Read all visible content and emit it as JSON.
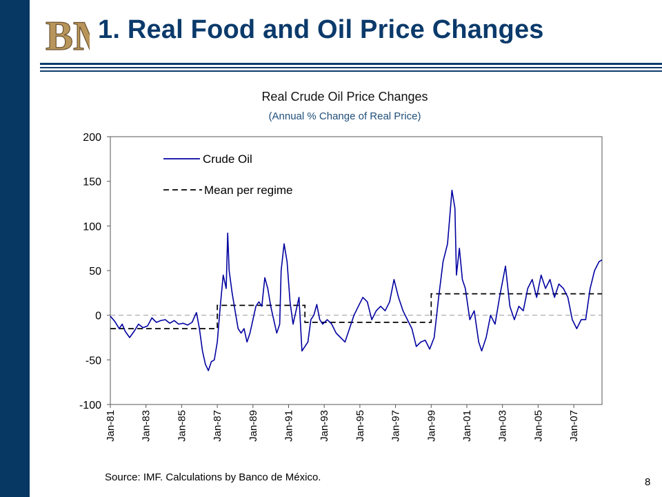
{
  "slide": {
    "title": "1. Real Food and Oil Price Changes",
    "logo_text": "BM",
    "source": "Source: IMF. Calculations by Banco de México.",
    "page_number": "8"
  },
  "colors": {
    "sidebar": "#073763",
    "title": "#0b3a6b",
    "series": "#0000a0",
    "logo": "#b8955a"
  },
  "chart_data": {
    "type": "line",
    "title": "Real Crude Oil Price Changes",
    "subtitle": "(Annual % Change of Real Price)",
    "xlabel": "",
    "ylabel": "",
    "ylim": [
      -100,
      200
    ],
    "yticks": [
      200,
      150,
      100,
      50,
      0,
      -50,
      -100
    ],
    "xlim": [
      "1981-01",
      "2008-08"
    ],
    "xticks": [
      "Jan-81",
      "Jan-83",
      "Jan-85",
      "Jan-87",
      "Jan-89",
      "Jan-91",
      "Jan-93",
      "Jan-95",
      "Jan-97",
      "Jan-99",
      "Jan-01",
      "Jan-03",
      "Jan-05",
      "Jan-07"
    ],
    "grid": false,
    "legend_position": "top-left",
    "series": [
      {
        "name": "Crude Oil",
        "style": "solid",
        "points": [
          [
            "1981-01",
            -1
          ],
          [
            "1981-04",
            -7
          ],
          [
            "1981-07",
            -15
          ],
          [
            "1981-09",
            -10
          ],
          [
            "1981-11",
            -18
          ],
          [
            "1982-02",
            -25
          ],
          [
            "1982-05",
            -18
          ],
          [
            "1982-08",
            -10
          ],
          [
            "1982-11",
            -14
          ],
          [
            "1983-02",
            -12
          ],
          [
            "1983-05",
            -3
          ],
          [
            "1983-08",
            -8
          ],
          [
            "1983-11",
            -6
          ],
          [
            "1984-02",
            -5
          ],
          [
            "1984-05",
            -9
          ],
          [
            "1984-08",
            -6
          ],
          [
            "1984-11",
            -10
          ],
          [
            "1985-02",
            -9
          ],
          [
            "1985-05",
            -11
          ],
          [
            "1985-08",
            -8
          ],
          [
            "1985-11",
            3
          ],
          [
            "1986-01",
            -15
          ],
          [
            "1986-03",
            -40
          ],
          [
            "1986-05",
            -55
          ],
          [
            "1986-07",
            -62
          ],
          [
            "1986-09",
            -52
          ],
          [
            "1986-11",
            -50
          ],
          [
            "1987-01",
            -30
          ],
          [
            "1987-03",
            10
          ],
          [
            "1987-05",
            45
          ],
          [
            "1987-07",
            30
          ],
          [
            "1987-08",
            92
          ],
          [
            "1987-09",
            50
          ],
          [
            "1987-11",
            25
          ],
          [
            "1988-01",
            5
          ],
          [
            "1988-03",
            -15
          ],
          [
            "1988-05",
            -20
          ],
          [
            "1988-07",
            -15
          ],
          [
            "1988-09",
            -30
          ],
          [
            "1988-11",
            -20
          ],
          [
            "1989-01",
            -5
          ],
          [
            "1989-03",
            10
          ],
          [
            "1989-05",
            15
          ],
          [
            "1989-07",
            10
          ],
          [
            "1989-09",
            42
          ],
          [
            "1989-11",
            30
          ],
          [
            "1990-01",
            10
          ],
          [
            "1990-03",
            -5
          ],
          [
            "1990-05",
            -20
          ],
          [
            "1990-07",
            -10
          ],
          [
            "1990-08",
            50
          ],
          [
            "1990-10",
            80
          ],
          [
            "1990-12",
            60
          ],
          [
            "1991-02",
            15
          ],
          [
            "1991-04",
            -10
          ],
          [
            "1991-06",
            5
          ],
          [
            "1991-08",
            20
          ],
          [
            "1991-10",
            -40
          ],
          [
            "1991-12",
            -35
          ],
          [
            "1992-02",
            -30
          ],
          [
            "1992-04",
            -5
          ],
          [
            "1992-06",
            0
          ],
          [
            "1992-08",
            12
          ],
          [
            "1992-10",
            -5
          ],
          [
            "1992-12",
            -10
          ],
          [
            "1993-03",
            -5
          ],
          [
            "1993-06",
            -10
          ],
          [
            "1993-09",
            -20
          ],
          [
            "1993-12",
            -25
          ],
          [
            "1994-03",
            -30
          ],
          [
            "1994-06",
            -15
          ],
          [
            "1994-09",
            0
          ],
          [
            "1994-12",
            10
          ],
          [
            "1995-03",
            20
          ],
          [
            "1995-06",
            15
          ],
          [
            "1995-09",
            -5
          ],
          [
            "1995-12",
            5
          ],
          [
            "1996-03",
            10
          ],
          [
            "1996-06",
            5
          ],
          [
            "1996-09",
            15
          ],
          [
            "1996-12",
            40
          ],
          [
            "1997-03",
            20
          ],
          [
            "1997-06",
            5
          ],
          [
            "1997-09",
            -5
          ],
          [
            "1997-12",
            -15
          ],
          [
            "1998-03",
            -35
          ],
          [
            "1998-06",
            -30
          ],
          [
            "1998-09",
            -28
          ],
          [
            "1998-12",
            -38
          ],
          [
            "1999-03",
            -25
          ],
          [
            "1999-06",
            20
          ],
          [
            "1999-09",
            60
          ],
          [
            "1999-12",
            80
          ],
          [
            "2000-03",
            140
          ],
          [
            "2000-05",
            120
          ],
          [
            "2000-06",
            45
          ],
          [
            "2000-08",
            75
          ],
          [
            "2000-10",
            40
          ],
          [
            "2000-12",
            30
          ],
          [
            "2001-03",
            -5
          ],
          [
            "2001-06",
            5
          ],
          [
            "2001-09",
            -30
          ],
          [
            "2001-11",
            -40
          ],
          [
            "2002-02",
            -25
          ],
          [
            "2002-05",
            0
          ],
          [
            "2002-08",
            -10
          ],
          [
            "2002-11",
            20
          ],
          [
            "2003-03",
            55
          ],
          [
            "2003-06",
            10
          ],
          [
            "2003-09",
            -5
          ],
          [
            "2003-12",
            10
          ],
          [
            "2004-03",
            5
          ],
          [
            "2004-06",
            30
          ],
          [
            "2004-09",
            40
          ],
          [
            "2004-12",
            20
          ],
          [
            "2005-03",
            45
          ],
          [
            "2005-06",
            30
          ],
          [
            "2005-09",
            40
          ],
          [
            "2005-12",
            20
          ],
          [
            "2006-03",
            35
          ],
          [
            "2006-06",
            30
          ],
          [
            "2006-09",
            20
          ],
          [
            "2006-12",
            -5
          ],
          [
            "2007-03",
            -15
          ],
          [
            "2007-06",
            -5
          ],
          [
            "2007-09",
            -5
          ],
          [
            "2007-12",
            30
          ],
          [
            "2008-03",
            50
          ],
          [
            "2008-06",
            60
          ],
          [
            "2008-08",
            62
          ]
        ]
      },
      {
        "name": "Mean per regime",
        "style": "dashed",
        "points": [
          [
            "1981-01",
            -15
          ],
          [
            "1987-01",
            -15
          ],
          [
            "1987-01",
            11
          ],
          [
            "1991-12",
            11
          ],
          [
            "1991-12",
            -8
          ],
          [
            "1999-01",
            -8
          ],
          [
            "1999-01",
            24
          ],
          [
            "2008-08",
            24
          ]
        ]
      }
    ]
  }
}
